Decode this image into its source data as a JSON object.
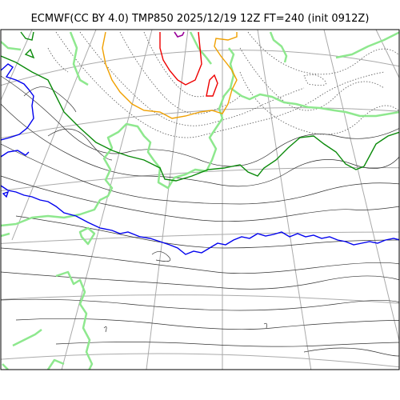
{
  "title": "ECMWF(CC BY 4.0) TMP850 2025/12/19 12Z FT=240 (init 0912Z)",
  "colors": {
    "coastline": "#8ee88e",
    "graticule": "#aaaaaa",
    "contour_thin": "#333333",
    "contour_dotted": "#555555",
    "isotherm_green": "#0a8a0a",
    "isotherm_blue": "#0000ee",
    "isotherm_orange": "#f0a000",
    "isotherm_red": "#ee0000",
    "isotherm_purple": "#990099"
  },
  "legend": []
}
